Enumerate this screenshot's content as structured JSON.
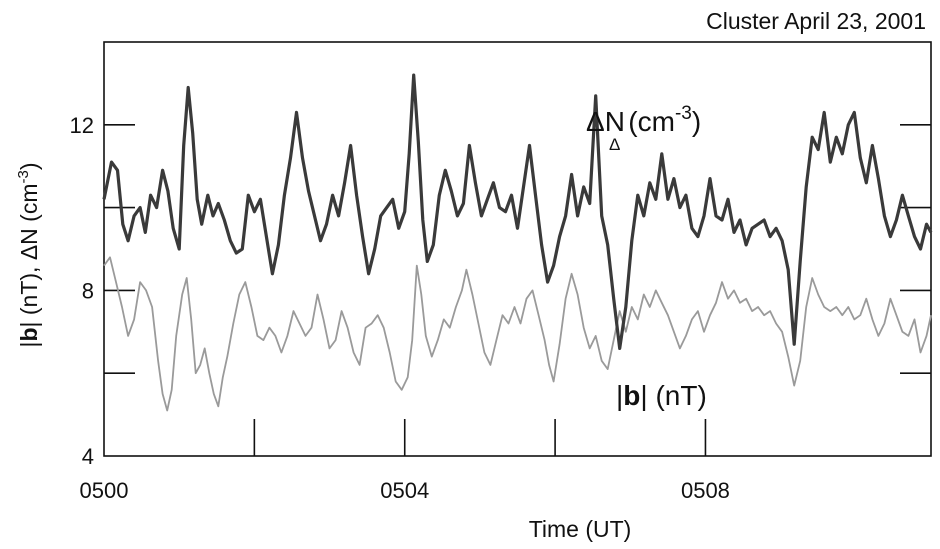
{
  "chart_data": {
    "type": "line",
    "title": "Cluster April 23, 2001",
    "xlabel": "Time  (UT)",
    "ylabel": {
      "b": "b",
      "after_b": "| (nT),  ΔN (cm",
      "exp": "-3",
      "close": ")"
    },
    "xlim": [
      0,
      11
    ],
    "ylim": [
      4,
      14
    ],
    "x_ticks": [
      {
        "value": 0,
        "label": "0500"
      },
      {
        "value": 4,
        "label": "0504"
      },
      {
        "value": 8,
        "label": "0508"
      }
    ],
    "x_minor_ticks": [
      2,
      6
    ],
    "y_ticks": [
      {
        "value": 4,
        "label": "4"
      },
      {
        "value": 8,
        "label": "8"
      },
      {
        "value": 12,
        "label": "12"
      }
    ],
    "y_minor_ticks": [
      6,
      10
    ],
    "annotations": {
      "dn": {
        "main": "ΔN",
        "sub": "Δ",
        "unit": "(cm",
        "exp": "-3",
        "close": ")"
      },
      "b": {
        "b": "b",
        "rest": "| (nT)"
      }
    },
    "series": [
      {
        "key": "dn",
        "color": "#3a3a3a",
        "points": [
          [
            0.0,
            10.2
          ],
          [
            0.1,
            11.1
          ],
          [
            0.18,
            10.9
          ],
          [
            0.25,
            9.6
          ],
          [
            0.32,
            9.2
          ],
          [
            0.4,
            9.8
          ],
          [
            0.48,
            10.0
          ],
          [
            0.55,
            9.4
          ],
          [
            0.62,
            10.3
          ],
          [
            0.7,
            10.0
          ],
          [
            0.78,
            10.9
          ],
          [
            0.85,
            10.4
          ],
          [
            0.92,
            9.5
          ],
          [
            1.0,
            9.0
          ],
          [
            1.06,
            11.5
          ],
          [
            1.12,
            12.9
          ],
          [
            1.18,
            11.8
          ],
          [
            1.24,
            10.2
          ],
          [
            1.3,
            9.6
          ],
          [
            1.38,
            10.3
          ],
          [
            1.45,
            9.8
          ],
          [
            1.52,
            10.1
          ],
          [
            1.6,
            9.7
          ],
          [
            1.68,
            9.2
          ],
          [
            1.76,
            8.9
          ],
          [
            1.84,
            9.0
          ],
          [
            1.92,
            10.3
          ],
          [
            2.0,
            9.9
          ],
          [
            2.08,
            10.2
          ],
          [
            2.16,
            9.3
          ],
          [
            2.24,
            8.4
          ],
          [
            2.32,
            9.1
          ],
          [
            2.4,
            10.3
          ],
          [
            2.48,
            11.2
          ],
          [
            2.56,
            12.3
          ],
          [
            2.64,
            11.2
          ],
          [
            2.72,
            10.4
          ],
          [
            2.8,
            9.8
          ],
          [
            2.88,
            9.2
          ],
          [
            2.96,
            9.6
          ],
          [
            3.04,
            10.3
          ],
          [
            3.12,
            9.8
          ],
          [
            3.2,
            10.6
          ],
          [
            3.28,
            11.5
          ],
          [
            3.36,
            10.3
          ],
          [
            3.44,
            9.3
          ],
          [
            3.52,
            8.4
          ],
          [
            3.6,
            9.0
          ],
          [
            3.68,
            9.8
          ],
          [
            3.76,
            10.0
          ],
          [
            3.84,
            10.2
          ],
          [
            3.92,
            9.5
          ],
          [
            4.0,
            9.9
          ],
          [
            4.06,
            11.3
          ],
          [
            4.12,
            13.2
          ],
          [
            4.18,
            11.6
          ],
          [
            4.24,
            9.7
          ],
          [
            4.3,
            8.7
          ],
          [
            4.38,
            9.1
          ],
          [
            4.46,
            10.3
          ],
          [
            4.54,
            10.9
          ],
          [
            4.62,
            10.4
          ],
          [
            4.7,
            9.8
          ],
          [
            4.78,
            10.1
          ],
          [
            4.86,
            11.5
          ],
          [
            4.94,
            10.6
          ],
          [
            5.02,
            9.8
          ],
          [
            5.1,
            10.2
          ],
          [
            5.18,
            10.6
          ],
          [
            5.26,
            10.0
          ],
          [
            5.34,
            9.9
          ],
          [
            5.42,
            10.3
          ],
          [
            5.5,
            9.5
          ],
          [
            5.58,
            10.5
          ],
          [
            5.66,
            11.5
          ],
          [
            5.74,
            10.3
          ],
          [
            5.82,
            9.1
          ],
          [
            5.9,
            8.2
          ],
          [
            5.98,
            8.6
          ],
          [
            6.06,
            9.3
          ],
          [
            6.14,
            9.8
          ],
          [
            6.22,
            10.8
          ],
          [
            6.3,
            9.8
          ],
          [
            6.38,
            10.5
          ],
          [
            6.46,
            10.1
          ],
          [
            6.54,
            12.7
          ],
          [
            6.62,
            9.8
          ],
          [
            6.7,
            9.1
          ],
          [
            6.78,
            7.8
          ],
          [
            6.86,
            6.6
          ],
          [
            6.94,
            7.6
          ],
          [
            7.02,
            9.2
          ],
          [
            7.1,
            10.3
          ],
          [
            7.18,
            9.8
          ],
          [
            7.26,
            10.6
          ],
          [
            7.34,
            10.2
          ],
          [
            7.42,
            11.3
          ],
          [
            7.5,
            10.2
          ],
          [
            7.58,
            10.7
          ],
          [
            7.66,
            10.0
          ],
          [
            7.74,
            10.3
          ],
          [
            7.82,
            9.5
          ],
          [
            7.9,
            9.3
          ],
          [
            7.98,
            9.8
          ],
          [
            8.06,
            10.7
          ],
          [
            8.14,
            9.8
          ],
          [
            8.22,
            9.7
          ],
          [
            8.3,
            10.2
          ],
          [
            8.38,
            9.4
          ],
          [
            8.46,
            9.7
          ],
          [
            8.54,
            9.1
          ],
          [
            8.62,
            9.5
          ],
          [
            8.7,
            9.6
          ],
          [
            8.78,
            9.7
          ],
          [
            8.86,
            9.3
          ],
          [
            8.94,
            9.5
          ],
          [
            9.02,
            9.2
          ],
          [
            9.1,
            8.5
          ],
          [
            9.18,
            6.7
          ],
          [
            9.26,
            8.7
          ],
          [
            9.34,
            10.5
          ],
          [
            9.42,
            11.7
          ],
          [
            9.5,
            11.4
          ],
          [
            9.58,
            12.3
          ],
          [
            9.66,
            11.1
          ],
          [
            9.74,
            11.7
          ],
          [
            9.82,
            11.3
          ],
          [
            9.9,
            12.0
          ],
          [
            9.98,
            12.3
          ],
          [
            10.06,
            11.2
          ],
          [
            10.14,
            10.6
          ],
          [
            10.22,
            11.5
          ],
          [
            10.3,
            10.7
          ],
          [
            10.38,
            9.8
          ],
          [
            10.46,
            9.3
          ],
          [
            10.54,
            9.7
          ],
          [
            10.62,
            10.3
          ],
          [
            10.7,
            9.8
          ],
          [
            10.78,
            9.3
          ],
          [
            10.86,
            9.0
          ],
          [
            10.94,
            9.6
          ],
          [
            11.0,
            9.4
          ]
        ]
      },
      {
        "key": "b",
        "color": "#9a9a9a",
        "points": [
          [
            0.0,
            8.6
          ],
          [
            0.08,
            8.8
          ],
          [
            0.16,
            8.2
          ],
          [
            0.24,
            7.6
          ],
          [
            0.32,
            6.9
          ],
          [
            0.4,
            7.3
          ],
          [
            0.48,
            8.2
          ],
          [
            0.56,
            8.0
          ],
          [
            0.64,
            7.6
          ],
          [
            0.72,
            6.3
          ],
          [
            0.78,
            5.5
          ],
          [
            0.84,
            5.1
          ],
          [
            0.9,
            5.6
          ],
          [
            0.96,
            6.9
          ],
          [
            1.04,
            7.9
          ],
          [
            1.1,
            8.3
          ],
          [
            1.16,
            7.3
          ],
          [
            1.22,
            6.0
          ],
          [
            1.28,
            6.2
          ],
          [
            1.34,
            6.6
          ],
          [
            1.4,
            6.0
          ],
          [
            1.46,
            5.5
          ],
          [
            1.52,
            5.2
          ],
          [
            1.58,
            5.9
          ],
          [
            1.64,
            6.4
          ],
          [
            1.72,
            7.2
          ],
          [
            1.8,
            7.9
          ],
          [
            1.88,
            8.2
          ],
          [
            1.96,
            7.6
          ],
          [
            2.04,
            6.9
          ],
          [
            2.12,
            6.8
          ],
          [
            2.2,
            7.1
          ],
          [
            2.28,
            6.9
          ],
          [
            2.36,
            6.5
          ],
          [
            2.44,
            6.9
          ],
          [
            2.52,
            7.5
          ],
          [
            2.6,
            7.2
          ],
          [
            2.68,
            6.9
          ],
          [
            2.76,
            7.1
          ],
          [
            2.84,
            7.9
          ],
          [
            2.92,
            7.3
          ],
          [
            3.0,
            6.6
          ],
          [
            3.08,
            6.8
          ],
          [
            3.16,
            7.5
          ],
          [
            3.24,
            7.1
          ],
          [
            3.32,
            6.5
          ],
          [
            3.4,
            6.2
          ],
          [
            3.48,
            7.1
          ],
          [
            3.56,
            7.2
          ],
          [
            3.64,
            7.4
          ],
          [
            3.72,
            7.1
          ],
          [
            3.8,
            6.5
          ],
          [
            3.88,
            5.8
          ],
          [
            3.96,
            5.6
          ],
          [
            4.04,
            5.9
          ],
          [
            4.1,
            6.8
          ],
          [
            4.16,
            8.6
          ],
          [
            4.22,
            7.9
          ],
          [
            4.28,
            6.9
          ],
          [
            4.36,
            6.4
          ],
          [
            4.44,
            6.8
          ],
          [
            4.52,
            7.3
          ],
          [
            4.6,
            7.1
          ],
          [
            4.68,
            7.6
          ],
          [
            4.76,
            8.0
          ],
          [
            4.82,
            8.5
          ],
          [
            4.9,
            7.9
          ],
          [
            4.98,
            7.2
          ],
          [
            5.06,
            6.5
          ],
          [
            5.14,
            6.2
          ],
          [
            5.22,
            6.8
          ],
          [
            5.3,
            7.4
          ],
          [
            5.38,
            7.2
          ],
          [
            5.46,
            7.6
          ],
          [
            5.54,
            7.2
          ],
          [
            5.62,
            7.8
          ],
          [
            5.7,
            8.0
          ],
          [
            5.78,
            7.4
          ],
          [
            5.86,
            6.8
          ],
          [
            5.92,
            6.2
          ],
          [
            5.98,
            5.8
          ],
          [
            6.06,
            6.7
          ],
          [
            6.14,
            7.8
          ],
          [
            6.22,
            8.4
          ],
          [
            6.3,
            7.9
          ],
          [
            6.38,
            7.1
          ],
          [
            6.46,
            6.6
          ],
          [
            6.54,
            6.9
          ],
          [
            6.62,
            6.3
          ],
          [
            6.7,
            6.1
          ],
          [
            6.78,
            6.8
          ],
          [
            6.86,
            7.5
          ],
          [
            6.94,
            7.0
          ],
          [
            7.02,
            7.6
          ],
          [
            7.1,
            7.3
          ],
          [
            7.18,
            7.9
          ],
          [
            7.26,
            7.6
          ],
          [
            7.34,
            8.0
          ],
          [
            7.42,
            7.7
          ],
          [
            7.5,
            7.4
          ],
          [
            7.58,
            7.0
          ],
          [
            7.66,
            6.6
          ],
          [
            7.74,
            6.9
          ],
          [
            7.82,
            7.3
          ],
          [
            7.9,
            7.5
          ],
          [
            7.98,
            7.0
          ],
          [
            8.06,
            7.4
          ],
          [
            8.14,
            7.7
          ],
          [
            8.22,
            8.2
          ],
          [
            8.3,
            7.8
          ],
          [
            8.38,
            8.0
          ],
          [
            8.46,
            7.7
          ],
          [
            8.54,
            7.8
          ],
          [
            8.62,
            7.5
          ],
          [
            8.7,
            7.6
          ],
          [
            8.78,
            7.4
          ],
          [
            8.86,
            7.5
          ],
          [
            8.94,
            7.2
          ],
          [
            9.02,
            7.0
          ],
          [
            9.1,
            6.4
          ],
          [
            9.18,
            5.7
          ],
          [
            9.26,
            6.3
          ],
          [
            9.34,
            7.6
          ],
          [
            9.42,
            8.3
          ],
          [
            9.5,
            7.9
          ],
          [
            9.58,
            7.6
          ],
          [
            9.66,
            7.5
          ],
          [
            9.74,
            7.6
          ],
          [
            9.82,
            7.4
          ],
          [
            9.9,
            7.6
          ],
          [
            9.98,
            7.3
          ],
          [
            10.06,
            7.4
          ],
          [
            10.14,
            7.8
          ],
          [
            10.22,
            7.3
          ],
          [
            10.3,
            6.9
          ],
          [
            10.38,
            7.2
          ],
          [
            10.46,
            7.8
          ],
          [
            10.54,
            7.4
          ],
          [
            10.62,
            7.0
          ],
          [
            10.7,
            6.9
          ],
          [
            10.78,
            7.3
          ],
          [
            10.86,
            6.5
          ],
          [
            10.94,
            6.9
          ],
          [
            11.0,
            7.4
          ]
        ]
      }
    ]
  }
}
